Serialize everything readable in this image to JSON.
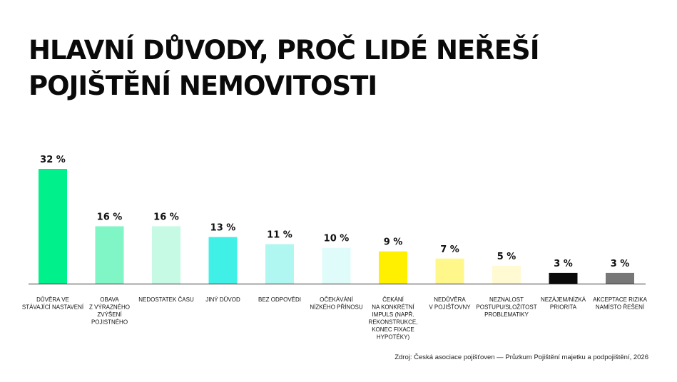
{
  "title": {
    "line1": "HLAVNÍ DŮVODY, PROČ LIDÉ NEŘEŠÍ",
    "line2": "POJIŠTĚNÍ NEMOVITOSTI"
  },
  "source": "Zdroj: Česká asociace pojišťoven — Průzkum Pojištění majetku a podpojištění, 2026",
  "chart_data": {
    "type": "bar",
    "ylim": [
      0,
      32
    ],
    "grid": false,
    "value_suffix": " %",
    "categories": [
      [
        "DŮVĚRA VE",
        "STÁVAJÍCÍ NASTAVENÍ"
      ],
      [
        "OBAVA",
        "Z VÝRAZNÉHO",
        "ZVÝŠENÍ",
        "POJISTNÉHO"
      ],
      [
        "NEDOSTATEK ČASU"
      ],
      [
        "JINÝ DŮVOD"
      ],
      [
        "BEZ ODPOVĚDI"
      ],
      [
        "OČEKÁVÁNÍ",
        "NÍZKÉHO PŘÍNOSU"
      ],
      [
        "ČEKÁNÍ",
        "NA KONKRÉTNÍ",
        "IMPULS (NAPŘ.",
        "REKONSTRUKCE,",
        "KONEC FIXACE",
        "HYPOTÉKY)"
      ],
      [
        "NEDŮVĚRA",
        "V POJIŠŤOVNY"
      ],
      [
        "NEZNALOST",
        "POSTUPU/SLOŽITOST",
        "PROBLEMATIKY"
      ],
      [
        "NEZÁJEM/NÍZKÁ",
        "PRIORITA"
      ],
      [
        "AKCEPTACE RIZIKA",
        "NAMÍSTO ŘEŠENÍ"
      ]
    ],
    "values": [
      32,
      16,
      16,
      13,
      11,
      10,
      9,
      7,
      5,
      3,
      3
    ],
    "colors": [
      "#00f08c",
      "#80f5c6",
      "#c6faE4",
      "#40f0e6",
      "#b0f7f2",
      "#dffcfa",
      "#fff000",
      "#fff78a",
      "#fffad2",
      "#0a0a0a",
      "#777777"
    ]
  }
}
